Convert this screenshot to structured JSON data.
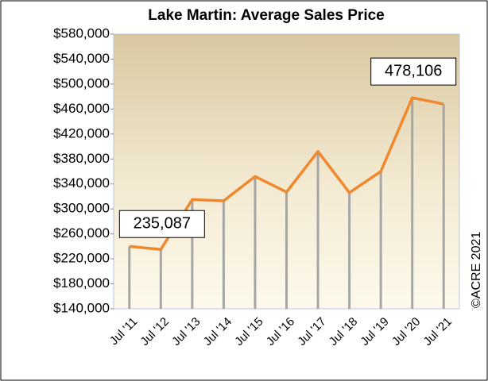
{
  "chart_data": {
    "type": "line",
    "title": "Lake Martin: Average Sales Price",
    "categories": [
      "Jul '11",
      "Jul '12",
      "Jul '13",
      "Jul '14",
      "Jul '15",
      "Jul '16",
      "Jul '17",
      "Jul '18",
      "Jul '19",
      "Jul '20",
      "Jul '21"
    ],
    "values": [
      240000,
      235087,
      315000,
      313000,
      352000,
      327000,
      392000,
      326000,
      360000,
      478106,
      468000
    ],
    "value_labels": [
      null,
      "235,087",
      null,
      null,
      null,
      null,
      null,
      null,
      null,
      "478,106",
      null
    ],
    "color": "#f0882e",
    "drop_line_color": "#a6a6a6",
    "ylim": [
      140000,
      580000
    ],
    "yticks": [
      {
        "value": 140000,
        "label": "$140,000"
      },
      {
        "value": 180000,
        "label": "$180,000"
      },
      {
        "value": 220000,
        "label": "$220,000"
      },
      {
        "value": 260000,
        "label": "$260,000"
      },
      {
        "value": 300000,
        "label": "$300,000"
      },
      {
        "value": 340000,
        "label": "$340,000"
      },
      {
        "value": 380000,
        "label": "$380,000"
      },
      {
        "value": 420000,
        "label": "$420,000"
      },
      {
        "value": 460000,
        "label": "$460,000"
      },
      {
        "value": 500000,
        "label": "$500,000"
      },
      {
        "value": 540000,
        "label": "$540,000"
      },
      {
        "value": 580000,
        "label": "$580,000"
      }
    ],
    "credit": "©ACRE  2021"
  }
}
